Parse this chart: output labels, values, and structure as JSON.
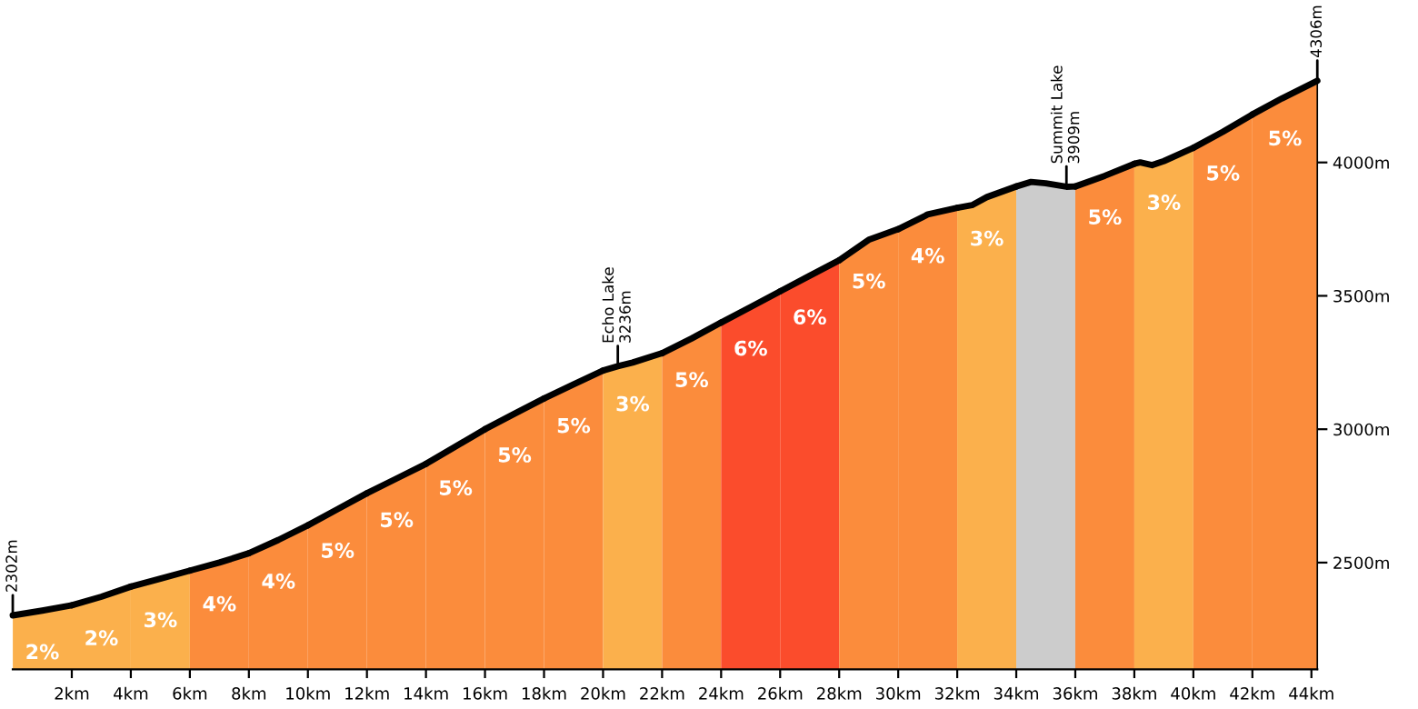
{
  "chart_data": {
    "type": "area",
    "xlim": [
      0,
      44.2
    ],
    "ylim": [
      2100,
      4306
    ],
    "xticks": [
      {
        "value": 2,
        "label": "2km"
      },
      {
        "value": 4,
        "label": "4km"
      },
      {
        "value": 6,
        "label": "6km"
      },
      {
        "value": 8,
        "label": "8km"
      },
      {
        "value": 10,
        "label": "10km"
      },
      {
        "value": 12,
        "label": "12km"
      },
      {
        "value": 14,
        "label": "14km"
      },
      {
        "value": 16,
        "label": "16km"
      },
      {
        "value": 18,
        "label": "18km"
      },
      {
        "value": 20,
        "label": "20km"
      },
      {
        "value": 22,
        "label": "22km"
      },
      {
        "value": 24,
        "label": "24km"
      },
      {
        "value": 26,
        "label": "26km"
      },
      {
        "value": 28,
        "label": "28km"
      },
      {
        "value": 30,
        "label": "30km"
      },
      {
        "value": 32,
        "label": "32km"
      },
      {
        "value": 34,
        "label": "34km"
      },
      {
        "value": 36,
        "label": "36km"
      },
      {
        "value": 38,
        "label": "38km"
      },
      {
        "value": 40,
        "label": "40km"
      },
      {
        "value": 42,
        "label": "42km"
      },
      {
        "value": 44,
        "label": "44km"
      }
    ],
    "yticks": [
      {
        "value": 2500,
        "label": "2500m"
      },
      {
        "value": 3000,
        "label": "3000m"
      },
      {
        "value": 3500,
        "label": "3500m"
      },
      {
        "value": 4000,
        "label": "4000m"
      }
    ],
    "grid": false,
    "legend": false,
    "series": [
      {
        "name": "2%",
        "color": "#fbb04c",
        "x": [
          0,
          1,
          2
        ],
        "values": [
          2302,
          2320,
          2340
        ]
      },
      {
        "name": "2%",
        "color": "#fbb04c",
        "x": [
          2,
          3,
          4
        ],
        "values": [
          2340,
          2372,
          2410
        ]
      },
      {
        "name": "3%",
        "color": "#fbb04c",
        "x": [
          4,
          5,
          6
        ],
        "values": [
          2410,
          2440,
          2470
        ]
      },
      {
        "name": "4%",
        "color": "#fb8c3c",
        "x": [
          6,
          7,
          8
        ],
        "values": [
          2470,
          2500,
          2535
        ]
      },
      {
        "name": "4%",
        "color": "#fb8c3c",
        "x": [
          8,
          9,
          10
        ],
        "values": [
          2535,
          2585,
          2640
        ]
      },
      {
        "name": "5%",
        "color": "#fb8c3c",
        "x": [
          10,
          11,
          12
        ],
        "values": [
          2640,
          2700,
          2760
        ]
      },
      {
        "name": "5%",
        "color": "#fb8c3c",
        "x": [
          12,
          13,
          14
        ],
        "values": [
          2760,
          2815,
          2870
        ]
      },
      {
        "name": "5%",
        "color": "#fb8c3c",
        "x": [
          14,
          15,
          16
        ],
        "values": [
          2870,
          2935,
          3000
        ]
      },
      {
        "name": "5%",
        "color": "#fb8c3c",
        "x": [
          16,
          17,
          18
        ],
        "values": [
          3000,
          3058,
          3115
        ]
      },
      {
        "name": "5%",
        "color": "#fb8c3c",
        "x": [
          18,
          19,
          20
        ],
        "values": [
          3115,
          3168,
          3220
        ]
      },
      {
        "name": "3%",
        "color": "#fbb04c",
        "x": [
          20,
          20.5,
          21,
          22
        ],
        "values": [
          3220,
          3236,
          3250,
          3285
        ]
      },
      {
        "name": "5%",
        "color": "#fb8c3c",
        "x": [
          22,
          23,
          24
        ],
        "values": [
          3285,
          3340,
          3400
        ]
      },
      {
        "name": "6%",
        "color": "#fb4c2c",
        "x": [
          24,
          25,
          26
        ],
        "values": [
          3400,
          3458,
          3517
        ]
      },
      {
        "name": "6%",
        "color": "#fb4c2c",
        "x": [
          26,
          27,
          28
        ],
        "values": [
          3517,
          3575,
          3633
        ]
      },
      {
        "name": "5%",
        "color": "#fb8c3c",
        "x": [
          28,
          29,
          30
        ],
        "values": [
          3633,
          3710,
          3750
        ]
      },
      {
        "name": "4%",
        "color": "#fb8c3c",
        "x": [
          30,
          31,
          32
        ],
        "values": [
          3750,
          3805,
          3830
        ]
      },
      {
        "name": "3%",
        "color": "#fbb04c",
        "x": [
          32,
          32.5,
          33,
          34
        ],
        "values": [
          3830,
          3840,
          3870,
          3910
        ]
      },
      {
        "color": "#cccccc",
        "x": [
          34,
          34.5,
          35,
          35.7,
          36
        ],
        "values": [
          3910,
          3927,
          3922,
          3909,
          3910
        ]
      },
      {
        "name": "5%",
        "color": "#fb8c3c",
        "x": [
          36,
          37,
          38
        ],
        "values": [
          3910,
          3950,
          3995
        ]
      },
      {
        "name": "3%",
        "color": "#fbb04c",
        "x": [
          38,
          38.2,
          38.6,
          39,
          40
        ],
        "values": [
          3995,
          4000,
          3990,
          4005,
          4055
        ]
      },
      {
        "name": "5%",
        "color": "#fb8c3c",
        "x": [
          40,
          41,
          42
        ],
        "values": [
          4055,
          4115,
          4180
        ]
      },
      {
        "name": "5%",
        "color": "#fb8c3c",
        "x": [
          42,
          43,
          44.2
        ],
        "values": [
          4180,
          4240,
          4306
        ]
      }
    ],
    "annotations": [
      {
        "text": "2302m",
        "x": 0,
        "y": 2302
      },
      {
        "text": "Echo Lake\n3236m",
        "x": 20.5,
        "y": 3236
      },
      {
        "text": "Summit Lake\n3909m",
        "x": 35.7,
        "y": 3909
      },
      {
        "text": "4306m",
        "x": 44.2,
        "y": 4306
      }
    ]
  }
}
